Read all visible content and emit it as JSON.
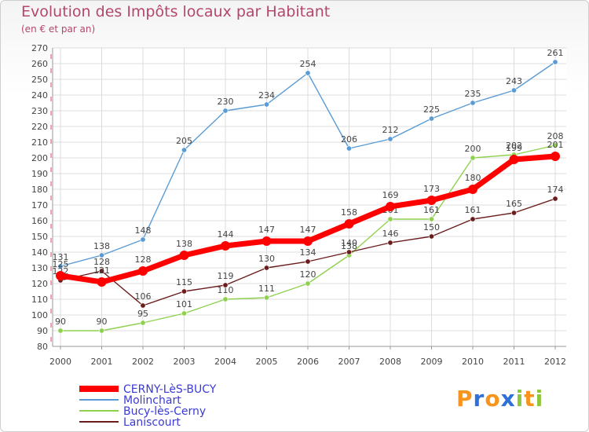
{
  "header": {
    "title": "Evolution des Impôts locaux par Habitant",
    "subtitle": "(en € et par an)"
  },
  "chart_data": {
    "type": "line",
    "title": "Evolution des Impôts locaux par Habitant",
    "subtitle": "(en € et par an)",
    "x": [
      "2000",
      "2001",
      "2002",
      "2003",
      "2004",
      "2005",
      "2006",
      "2007",
      "2008",
      "2009",
      "2010",
      "2011",
      "2012"
    ],
    "ylim": [
      80,
      270
    ],
    "yticks": [
      80,
      90,
      100,
      110,
      120,
      130,
      140,
      150,
      160,
      170,
      180,
      190,
      200,
      210,
      220,
      230,
      240,
      250,
      260,
      270
    ],
    "grid": true,
    "legend_position": "bottom-left",
    "series": [
      {
        "name": "CERNY-LèS-BUCY",
        "color": "#ff0000",
        "values": [
          125,
          121,
          128,
          138,
          144,
          147,
          147,
          158,
          169,
          173,
          180,
          199,
          201
        ],
        "labels": [
          "125",
          "121",
          "128",
          "138",
          "144",
          "147",
          "147",
          "158",
          "169",
          "173",
          "180",
          "199",
          "201"
        ]
      },
      {
        "name": "Molinchart",
        "color": "#5b9bd5",
        "values": [
          131,
          138,
          148,
          205,
          230,
          234,
          254,
          206,
          212,
          225,
          235,
          243,
          261
        ],
        "labels": [
          "131",
          "138",
          "148",
          "205",
          "230",
          "234",
          "254",
          "206",
          "212",
          "225",
          "235",
          "243",
          "261"
        ]
      },
      {
        "name": "Bucy-lès-Cerny",
        "color": "#8fd14f",
        "values": [
          90,
          90,
          95,
          101,
          110,
          111,
          120,
          138,
          161,
          161,
          200,
          202,
          208
        ],
        "labels": [
          "90",
          "90",
          "95",
          "101",
          "110",
          "111",
          "120",
          "138",
          "161",
          "161",
          "200",
          "202",
          "208"
        ]
      },
      {
        "name": "Laniscourt",
        "color": "#6b1c1c",
        "values": [
          122,
          128,
          106,
          115,
          119,
          130,
          134,
          140,
          146,
          150,
          161,
          165,
          174
        ],
        "labels": [
          "122",
          "128",
          "106",
          "115",
          "119",
          "130",
          "134",
          "140",
          "146",
          "150",
          "161",
          "165",
          "174"
        ]
      }
    ]
  },
  "logo": {
    "letters": [
      "P",
      "r",
      "o",
      "x",
      "i",
      "t",
      "i"
    ],
    "colors": [
      "#f7941d",
      "#2e6fd8",
      "#f7941d",
      "#2e6fd8",
      "#8dc63f",
      "#f7941d",
      "#8dc63f"
    ]
  }
}
